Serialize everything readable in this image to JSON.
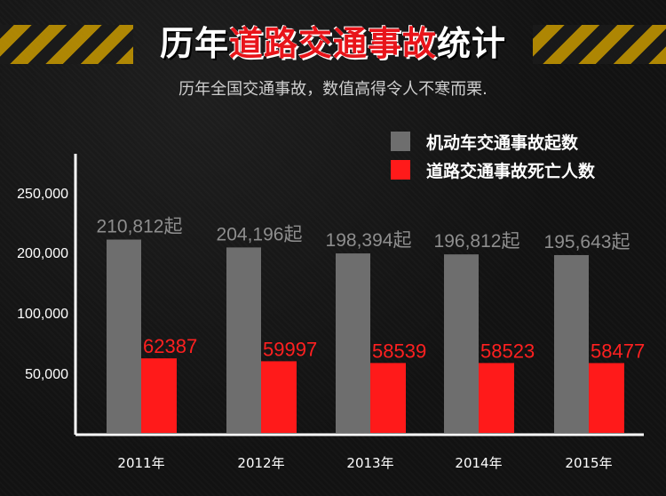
{
  "header": {
    "title_part1": "历年",
    "title_part2": "道路交通事故",
    "title_part3": "统计",
    "subtitle": "历年全国交通事故，数值高得令人不寒而栗."
  },
  "colors": {
    "series_vehicle": "#6e6e6e",
    "series_deaths": "#ff1a1a",
    "vehicle_label": "#8e8e8e",
    "deaths_label": "#ff2020",
    "axis": "#ffffff",
    "tick_label": "#ffffff"
  },
  "chart_data": {
    "type": "bar",
    "title": "历年道路交通事故统计",
    "categories": [
      "2011年",
      "2012年",
      "2013年",
      "2014年",
      "2015年"
    ],
    "series": [
      {
        "name": "机动车交通事故起数",
        "values": [
          210812,
          204196,
          198394,
          196812,
          195643
        ],
        "labels": [
          "210,812起",
          "204,196起",
          "198,394起",
          "196,812起",
          "195,643起"
        ]
      },
      {
        "name": "道路交通事故死亡人数",
        "values": [
          62387,
          59997,
          58539,
          58523,
          58477
        ],
        "labels": [
          "62387",
          "59997",
          "58539",
          "58523",
          "58477"
        ]
      }
    ],
    "y_ticks": [
      {
        "value": 50000,
        "label": "50,000"
      },
      {
        "value": 100000,
        "label": "100,000"
      },
      {
        "value": 200000,
        "label": "200,000"
      },
      {
        "value": 250000,
        "label": "250,000"
      }
    ],
    "legend_position": "top-right",
    "grid": false
  }
}
